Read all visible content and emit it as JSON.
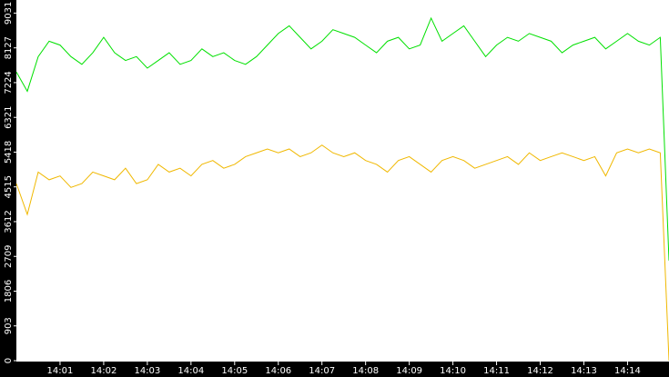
{
  "chart_data": {
    "type": "line",
    "x": [
      0,
      0.25,
      0.5,
      0.75,
      1,
      1.25,
      1.5,
      1.75,
      2,
      2.25,
      2.5,
      2.75,
      3,
      3.25,
      3.5,
      3.75,
      4,
      4.25,
      4.5,
      4.75,
      5,
      5.25,
      5.5,
      5.75,
      6,
      6.25,
      6.5,
      6.75,
      7,
      7.25,
      7.5,
      7.75,
      8,
      8.25,
      8.5,
      8.75,
      9,
      9.25,
      9.5,
      9.75,
      10,
      10.25,
      10.5,
      10.75,
      11,
      11.25,
      11.5,
      11.75,
      12,
      12.25,
      12.5,
      12.75,
      13,
      13.25,
      13.5,
      13.75,
      14,
      14.25,
      14.5,
      14.75,
      14.95
    ],
    "series": [
      {
        "color": "#00e000",
        "values": [
          7500,
          7000,
          7900,
          8300,
          8200,
          7900,
          7700,
          8000,
          8400,
          8000,
          7800,
          7900,
          7600,
          7800,
          8000,
          7700,
          7800,
          8100,
          7900,
          8000,
          7800,
          7700,
          7900,
          8200,
          8500,
          8700,
          8400,
          8100,
          8300,
          8600,
          8500,
          8400,
          8200,
          8000,
          8300,
          8400,
          8100,
          8200,
          8900,
          8300,
          8500,
          8700,
          8300,
          7900,
          8200,
          8400,
          8300,
          8500,
          8400,
          8300,
          8000,
          8200,
          8300,
          8400,
          8100,
          8300,
          8500,
          8300,
          8200,
          8400,
          2600
        ]
      },
      {
        "color": "#f0b800",
        "values": [
          4600,
          3800,
          4900,
          4700,
          4800,
          4500,
          4600,
          4900,
          4800,
          4700,
          5000,
          4600,
          4700,
          5100,
          4900,
          5000,
          4800,
          5100,
          5200,
          5000,
          5100,
          5300,
          5400,
          5500,
          5400,
          5500,
          5300,
          5400,
          5600,
          5400,
          5300,
          5400,
          5200,
          5100,
          4900,
          5200,
          5300,
          5100,
          4900,
          5200,
          5300,
          5200,
          5000,
          5100,
          5200,
          5300,
          5100,
          5400,
          5200,
          5300,
          5400,
          5300,
          5200,
          5300,
          4800,
          5400,
          5500,
          5400,
          5500,
          5400,
          0
        ]
      }
    ],
    "xlim": [
      0,
      14.95
    ],
    "xticks": [
      {
        "value": 1,
        "label": "14:01"
      },
      {
        "value": 2,
        "label": "14:02"
      },
      {
        "value": 3,
        "label": "14:03"
      },
      {
        "value": 4,
        "label": "14:04"
      },
      {
        "value": 5,
        "label": "14:05"
      },
      {
        "value": 6,
        "label": "14:06"
      },
      {
        "value": 7,
        "label": "14:07"
      },
      {
        "value": 8,
        "label": "14:08"
      },
      {
        "value": 9,
        "label": "14:09"
      },
      {
        "value": 10,
        "label": "14:10"
      },
      {
        "value": 11,
        "label": "14:11"
      },
      {
        "value": 12,
        "label": "14:12"
      },
      {
        "value": 13,
        "label": "14:13"
      },
      {
        "value": 14,
        "label": "14:14"
      }
    ],
    "ylim": [
      0,
      9300
    ],
    "yticks": [
      0,
      903,
      1806,
      2709,
      3612,
      4515,
      5418,
      6321,
      7224,
      8127,
      9031
    ]
  }
}
